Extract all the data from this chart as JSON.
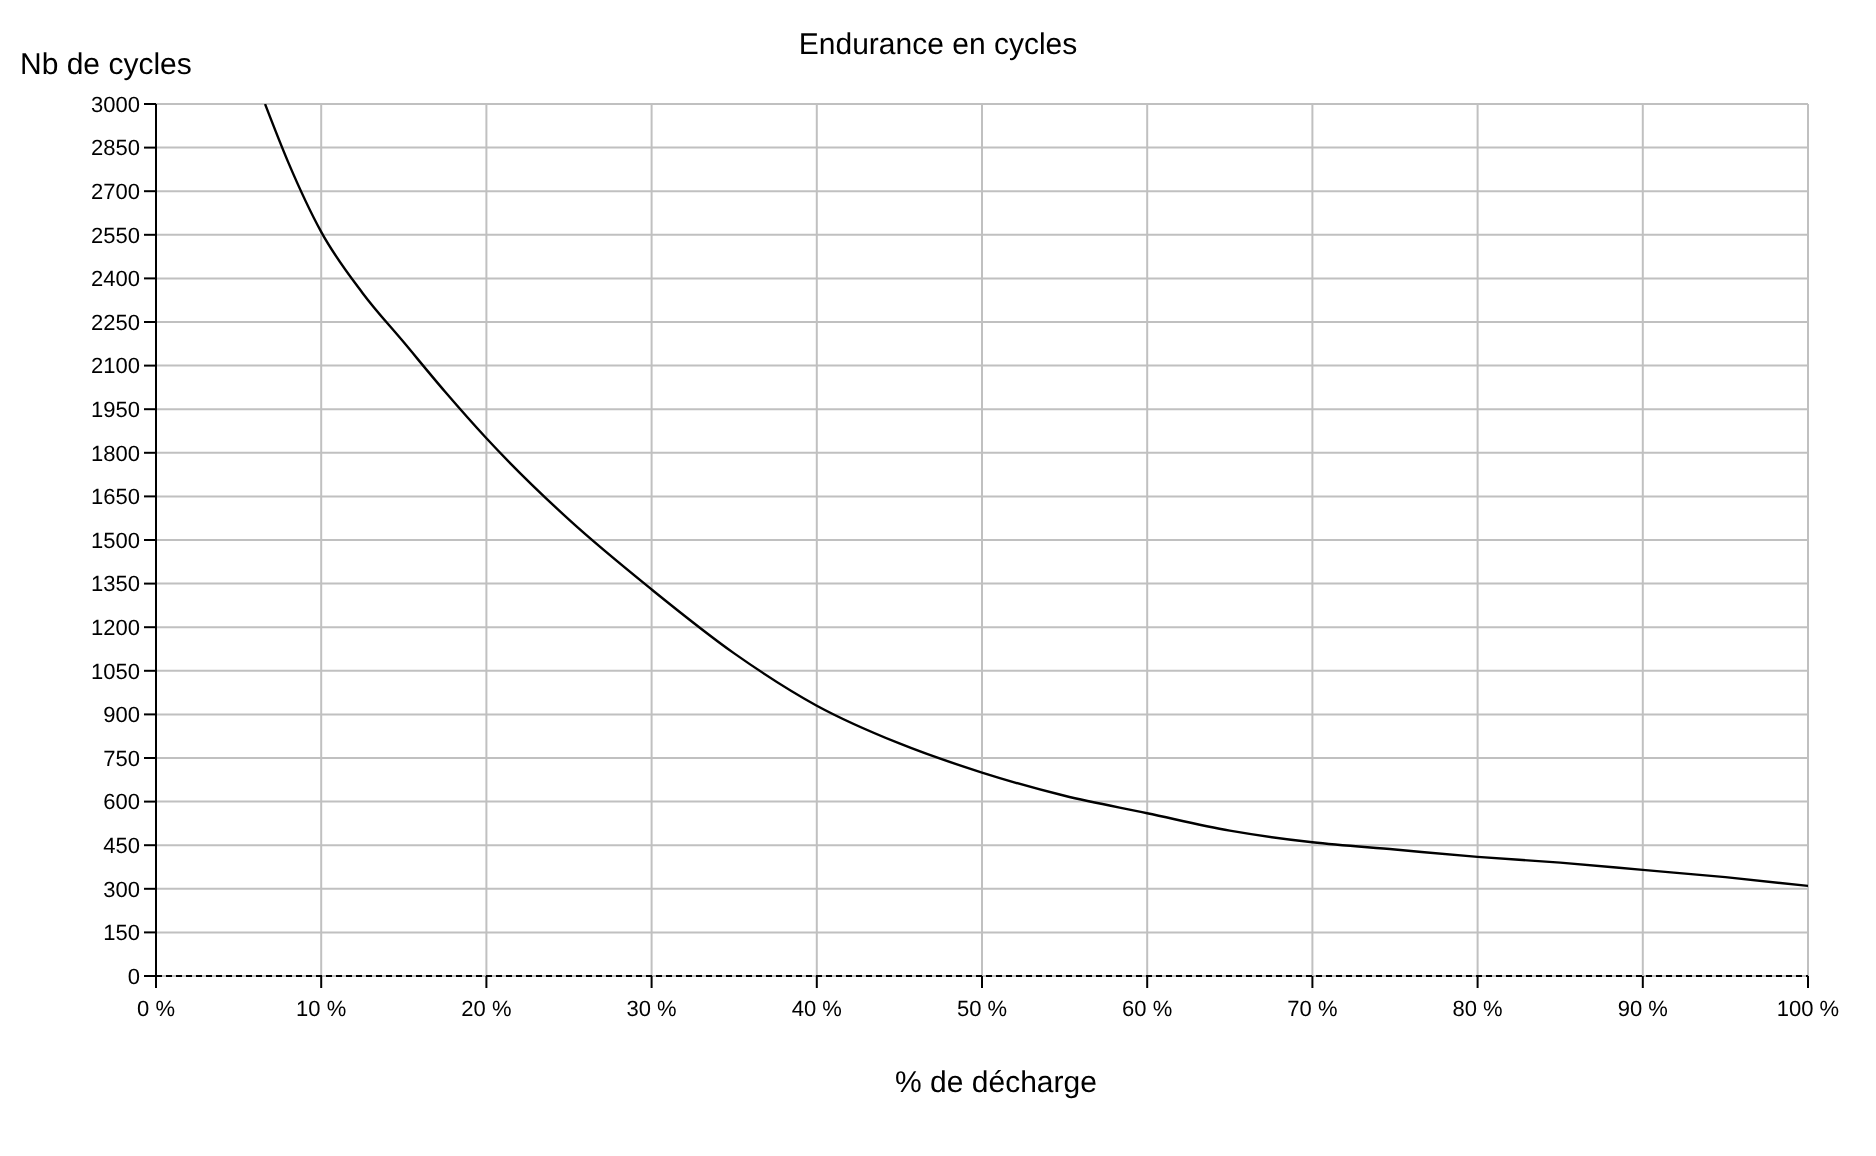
{
  "chart_data": {
    "type": "line",
    "title": "Endurance en cycles",
    "xlabel": "% de décharge",
    "ylabel": "Nb de cycles",
    "x": [
      6.6,
      8,
      10,
      12.5,
      15,
      17.5,
      20,
      25,
      30,
      35,
      40,
      45,
      50,
      55,
      60,
      65,
      70,
      75,
      80,
      85,
      90,
      95,
      100
    ],
    "series": [
      {
        "color": "#000000",
        "values": [
          3000,
          2800,
          2560,
          2350,
          2180,
          2010,
          1850,
          1570,
          1330,
          1110,
          930,
          800,
          700,
          620,
          560,
          500,
          460,
          435,
          410,
          390,
          365,
          340,
          310
        ]
      }
    ],
    "xlim": [
      0,
      100
    ],
    "xticks": [
      {
        "value": 0,
        "label": "0 %"
      },
      {
        "value": 10,
        "label": "10 %"
      },
      {
        "value": 20,
        "label": "20 %"
      },
      {
        "value": 30,
        "label": "30 %"
      },
      {
        "value": 40,
        "label": "40 %"
      },
      {
        "value": 50,
        "label": "50 %"
      },
      {
        "value": 60,
        "label": "60 %"
      },
      {
        "value": 70,
        "label": "70 %"
      },
      {
        "value": 80,
        "label": "80 %"
      },
      {
        "value": 90,
        "label": "90 %"
      },
      {
        "value": 100,
        "label": "100 %"
      }
    ],
    "ylim": [
      0,
      3000
    ],
    "yticks": [
      0,
      150,
      300,
      450,
      600,
      750,
      900,
      1050,
      1200,
      1350,
      1500,
      1650,
      1800,
      1950,
      2100,
      2250,
      2400,
      2550,
      2700,
      2850,
      3000
    ],
    "grid": true,
    "legend": false,
    "marker": "none",
    "line_style": "solid"
  }
}
